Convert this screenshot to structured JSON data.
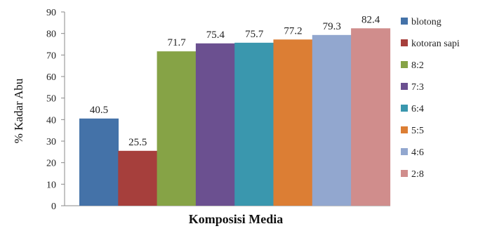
{
  "chart_data": {
    "type": "bar",
    "categories": [
      "blotong",
      "kotoran sapi",
      "8:2",
      "7:3",
      "6:4",
      "5:5",
      "4:6",
      "2:8"
    ],
    "values": [
      40.5,
      25.5,
      71.7,
      75.4,
      75.7,
      77.2,
      79.3,
      82.4
    ],
    "data_labels": [
      "40.5",
      "25.5",
      "71.7",
      "75.4",
      "75.7",
      "77.2",
      "79.3",
      "82.4"
    ],
    "colors": [
      "#4472A8",
      "#A63F3C",
      "#86A346",
      "#6B5090",
      "#3A97AE",
      "#DC7E34",
      "#92A7CF",
      "#D08D8C"
    ],
    "title": "",
    "xlabel": "Komposisi Media",
    "ylabel": "% Kadar Abu",
    "ylim": [
      0,
      90
    ],
    "yticks": [
      "0",
      "10",
      "20",
      "30",
      "40",
      "50",
      "60",
      "70",
      "80",
      "90"
    ],
    "grid": false,
    "legend": "right"
  }
}
